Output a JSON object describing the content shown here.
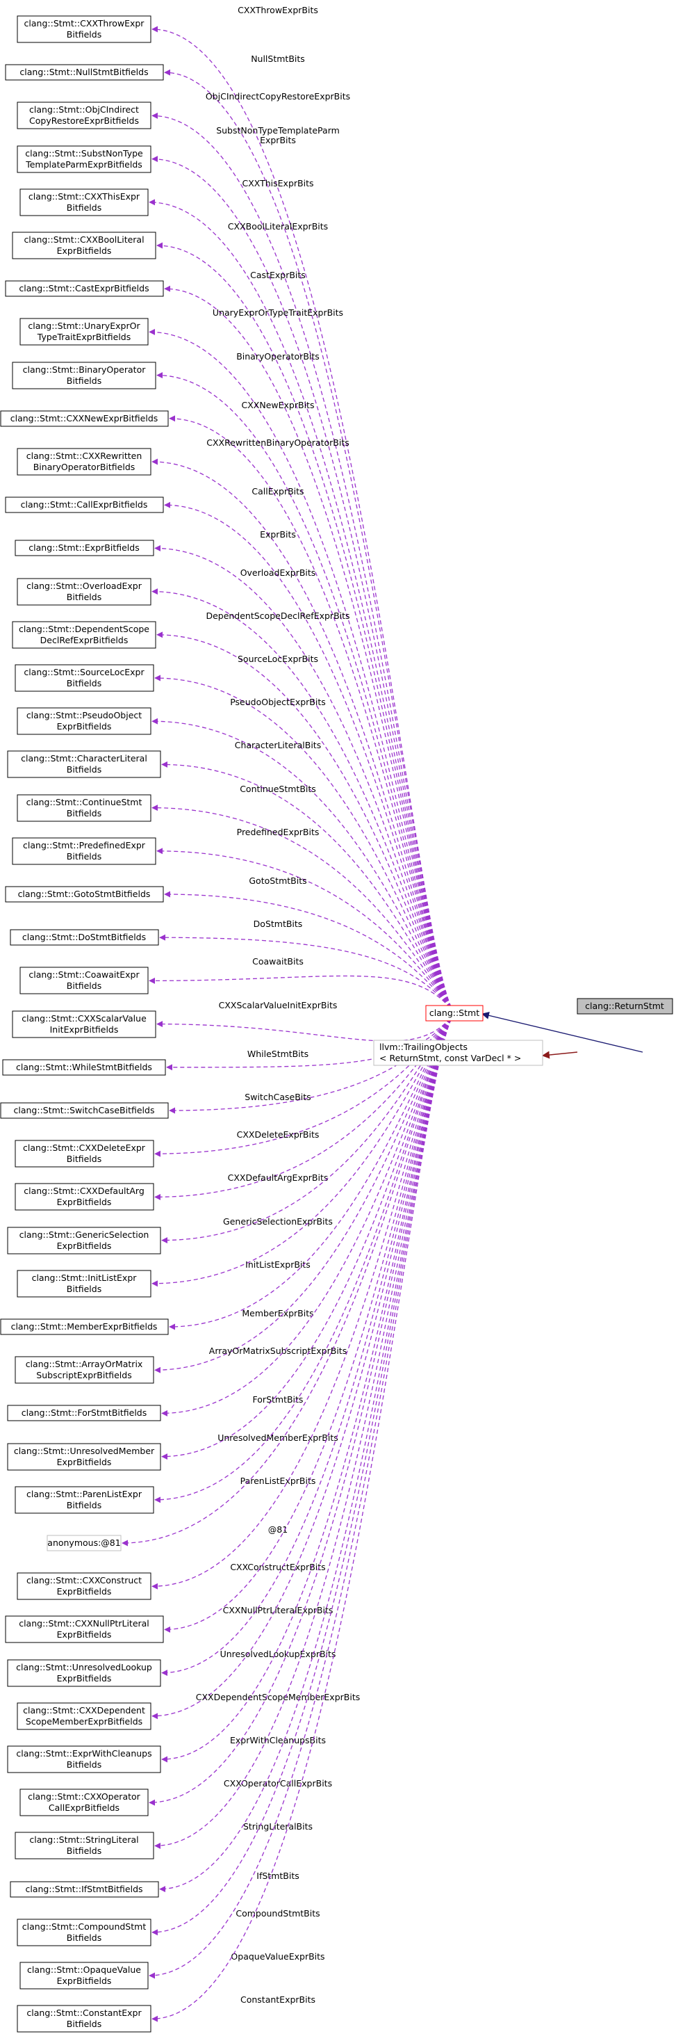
{
  "colors": {
    "member_edge": "#9a32cd",
    "inheritance_edge": "#191970",
    "template_edge": "#8b1a1a",
    "focus_fill": "#bfbfbf",
    "highlight_border": "#ff0000",
    "dim_border": "#bfbfbf"
  },
  "nodes": {
    "stmt": {
      "label": "clang::Stmt"
    },
    "return_stmt": {
      "label": "clang::ReturnStmt"
    },
    "trailing": {
      "lines": [
        "llvm::TrailingObjects",
        "< ReturnStmt, const VarDecl * >"
      ]
    }
  },
  "bitfields": [
    {
      "lines": [
        "clang::Stmt::CXXThrowExpr",
        "Bitfields"
      ],
      "edge": [
        "CXXThrowExprBits"
      ]
    },
    {
      "lines": [
        "clang::Stmt::NullStmtBitfields"
      ],
      "edge": [
        "NullStmtBits"
      ]
    },
    {
      "lines": [
        "clang::Stmt::ObjCIndirect",
        "CopyRestoreExprBitfields"
      ],
      "edge": [
        "ObjCIndirectCopyRestoreExprBits"
      ]
    },
    {
      "lines": [
        "clang::Stmt::SubstNonType",
        "TemplateParmExprBitfields"
      ],
      "edge": [
        "SubstNonTypeTemplateParm",
        "ExprBits"
      ]
    },
    {
      "lines": [
        "clang::Stmt::CXXThisExpr",
        "Bitfields"
      ],
      "edge": [
        "CXXThisExprBits"
      ]
    },
    {
      "lines": [
        "clang::Stmt::CXXBoolLiteral",
        "ExprBitfields"
      ],
      "edge": [
        "CXXBoolLiteralExprBits"
      ]
    },
    {
      "lines": [
        "clang::Stmt::CastExprBitfields"
      ],
      "edge": [
        "CastExprBits"
      ]
    },
    {
      "lines": [
        "clang::Stmt::UnaryExprOr",
        "TypeTraitExprBitfields"
      ],
      "edge": [
        "UnaryExprOrTypeTraitExprBits"
      ]
    },
    {
      "lines": [
        "clang::Stmt::BinaryOperator",
        "Bitfields"
      ],
      "edge": [
        "BinaryOperatorBits"
      ]
    },
    {
      "lines": [
        "clang::Stmt::CXXNewExprBitfields"
      ],
      "edge": [
        "CXXNewExprBits"
      ]
    },
    {
      "lines": [
        "clang::Stmt::CXXRewritten",
        "BinaryOperatorBitfields"
      ],
      "edge": [
        "CXXRewrittenBinaryOperatorBits"
      ]
    },
    {
      "lines": [
        "clang::Stmt::CallExprBitfields"
      ],
      "edge": [
        "CallExprBits"
      ]
    },
    {
      "lines": [
        "clang::Stmt::ExprBitfields"
      ],
      "edge": [
        "ExprBits"
      ]
    },
    {
      "lines": [
        "clang::Stmt::OverloadExpr",
        "Bitfields"
      ],
      "edge": [
        "OverloadExprBits"
      ]
    },
    {
      "lines": [
        "clang::Stmt::DependentScope",
        "DeclRefExprBitfields"
      ],
      "edge": [
        "DependentScopeDeclRefExprBits"
      ]
    },
    {
      "lines": [
        "clang::Stmt::SourceLocExpr",
        "Bitfields"
      ],
      "edge": [
        "SourceLocExprBits"
      ]
    },
    {
      "lines": [
        "clang::Stmt::PseudoObject",
        "ExprBitfields"
      ],
      "edge": [
        "PseudoObjectExprBits"
      ]
    },
    {
      "lines": [
        "clang::Stmt::CharacterLiteral",
        "Bitfields"
      ],
      "edge": [
        "CharacterLiteralBits"
      ]
    },
    {
      "lines": [
        "clang::Stmt::ContinueStmt",
        "Bitfields"
      ],
      "edge": [
        "ContinueStmtBits"
      ]
    },
    {
      "lines": [
        "clang::Stmt::PredefinedExpr",
        "Bitfields"
      ],
      "edge": [
        "PredefinedExprBits"
      ]
    },
    {
      "lines": [
        "clang::Stmt::GotoStmtBitfields"
      ],
      "edge": [
        "GotoStmtBits"
      ]
    },
    {
      "lines": [
        "clang::Stmt::DoStmtBitfields"
      ],
      "edge": [
        "DoStmtBits"
      ]
    },
    {
      "lines": [
        "clang::Stmt::CoawaitExpr",
        "Bitfields"
      ],
      "edge": [
        "CoawaitBits"
      ]
    },
    {
      "lines": [
        "clang::Stmt::CXXScalarValue",
        "InitExprBitfields"
      ],
      "edge": [
        "CXXScalarValueInitExprBits"
      ]
    },
    {
      "lines": [
        "clang::Stmt::WhileStmtBitfields"
      ],
      "edge": [
        "WhileStmtBits"
      ]
    },
    {
      "lines": [
        "clang::Stmt::SwitchCaseBitfields"
      ],
      "edge": [
        "SwitchCaseBits"
      ]
    },
    {
      "lines": [
        "clang::Stmt::CXXDeleteExpr",
        "Bitfields"
      ],
      "edge": [
        "CXXDeleteExprBits"
      ]
    },
    {
      "lines": [
        "clang::Stmt::CXXDefaultArg",
        "ExprBitfields"
      ],
      "edge": [
        "CXXDefaultArgExprBits"
      ]
    },
    {
      "lines": [
        "clang::Stmt::GenericSelection",
        "ExprBitfields"
      ],
      "edge": [
        "GenericSelectionExprBits"
      ]
    },
    {
      "lines": [
        "clang::Stmt::InitListExpr",
        "Bitfields"
      ],
      "edge": [
        "InitListExprBits"
      ]
    },
    {
      "lines": [
        "clang::Stmt::MemberExprBitfields"
      ],
      "edge": [
        "MemberExprBits"
      ]
    },
    {
      "lines": [
        "clang::Stmt::ArrayOrMatrix",
        "SubscriptExprBitfields"
      ],
      "edge": [
        "ArrayOrMatrixSubscriptExprBits"
      ]
    },
    {
      "lines": [
        "clang::Stmt::ForStmtBitfields"
      ],
      "edge": [
        "ForStmtBits"
      ]
    },
    {
      "lines": [
        "clang::Stmt::UnresolvedMember",
        "ExprBitfields"
      ],
      "edge": [
        "UnresolvedMemberExprBits"
      ]
    },
    {
      "lines": [
        "clang::Stmt::ParenListExpr",
        "Bitfields"
      ],
      "edge": [
        "ParenListExprBits"
      ]
    },
    {
      "lines": [
        "anonymous:@81"
      ],
      "edge": [
        "@81"
      ],
      "dim": true
    },
    {
      "lines": [
        "clang::Stmt::CXXConstruct",
        "ExprBitfields"
      ],
      "edge": [
        "CXXConstructExprBits"
      ]
    },
    {
      "lines": [
        "clang::Stmt::CXXNullPtrLiteral",
        "ExprBitfields"
      ],
      "edge": [
        "CXXNullPtrLiteralExprBits"
      ]
    },
    {
      "lines": [
        "clang::Stmt::UnresolvedLookup",
        "ExprBitfields"
      ],
      "edge": [
        "UnresolvedLookupExprBits"
      ]
    },
    {
      "lines": [
        "clang::Stmt::CXXDependent",
        "ScopeMemberExprBitfields"
      ],
      "edge": [
        "CXXDependentScopeMemberExprBits"
      ]
    },
    {
      "lines": [
        "clang::Stmt::ExprWithCleanups",
        "Bitfields"
      ],
      "edge": [
        "ExprWithCleanupsBits"
      ]
    },
    {
      "lines": [
        "clang::Stmt::CXXOperator",
        "CallExprBitfields"
      ],
      "edge": [
        "CXXOperatorCallExprBits"
      ]
    },
    {
      "lines": [
        "clang::Stmt::StringLiteral",
        "Bitfields"
      ],
      "edge": [
        "StringLiteralBits"
      ]
    },
    {
      "lines": [
        "clang::Stmt::IfStmtBitfields"
      ],
      "edge": [
        "IfStmtBits"
      ]
    },
    {
      "lines": [
        "clang::Stmt::CompoundStmt",
        "Bitfields"
      ],
      "edge": [
        "CompoundStmtBits"
      ]
    },
    {
      "lines": [
        "clang::Stmt::OpaqueValue",
        "ExprBitfields"
      ],
      "edge": [
        "OpaqueValueExprBits"
      ]
    },
    {
      "lines": [
        "clang::Stmt::ConstantExpr",
        "Bitfields"
      ],
      "edge": [
        "ConstantExprBits"
      ]
    }
  ]
}
